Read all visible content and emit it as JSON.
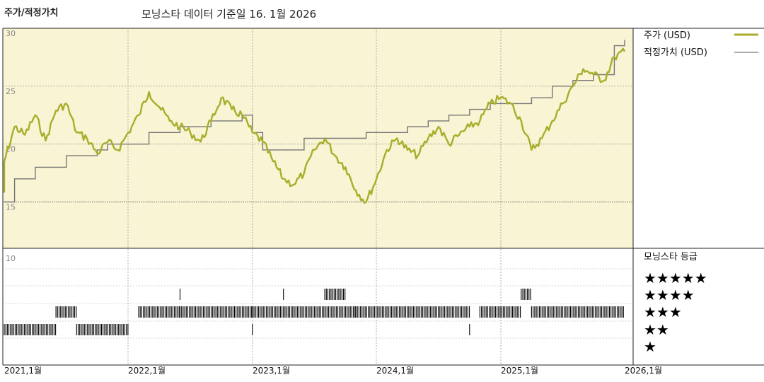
{
  "header": {
    "section_title": "주가/적정가치",
    "data_basis": "모닝스타 데이터 기준일 16. 1월 2026"
  },
  "legend": {
    "price_label": "주가 (USD)",
    "fair_value_label": "적정가치 (USD)",
    "rating_title": "모닝스타 등급",
    "rating_rows": [
      "★★★★★",
      "★★★★",
      "★★★",
      "★★",
      "★"
    ]
  },
  "colors": {
    "price_line": "#a8ad2a",
    "fair_value_line": "#777777",
    "upper_panel_bg": "#f8f4d4",
    "rating_bar": "#000000"
  },
  "chart_data": {
    "type": "line",
    "x_tick_labels": [
      "2021,1월",
      "2022,1월",
      "2023,1월",
      "2024,1월",
      "2025,1월",
      "2026,1월"
    ],
    "upper_panel": {
      "y_tick_labels": [
        "30",
        "25",
        "20",
        "15"
      ],
      "ylim": [
        11,
        30
      ],
      "x_range": [
        "2021-01",
        "2026-01"
      ],
      "series": [
        {
          "name": "주가 (USD)",
          "points": [
            [
              "2021-01",
              15.8
            ],
            [
              "2021-01",
              18.5
            ],
            [
              "2021-02",
              21.5
            ],
            [
              "2021-03",
              20.8
            ],
            [
              "2021-04",
              22.5
            ],
            [
              "2021-05",
              20.3
            ],
            [
              "2021-06",
              22.9
            ],
            [
              "2021-07",
              23.5
            ],
            [
              "2021-08",
              21.0
            ],
            [
              "2021-09",
              20.5
            ],
            [
              "2021-10",
              19.2
            ],
            [
              "2021-11",
              20.2
            ],
            [
              "2021-12",
              19.5
            ],
            [
              "2022-01",
              21.0
            ],
            [
              "2022-02",
              22.5
            ],
            [
              "2022-03",
              24.5
            ],
            [
              "2022-04",
              23.2
            ],
            [
              "2022-05",
              22.0
            ],
            [
              "2022-06",
              21.5
            ],
            [
              "2022-07",
              21.0
            ],
            [
              "2022-08",
              20.2
            ],
            [
              "2022-09",
              22.0
            ],
            [
              "2022-10",
              24.0
            ],
            [
              "2022-11",
              23.0
            ],
            [
              "2022-12",
              22.5
            ],
            [
              "2023-01",
              21.0
            ],
            [
              "2023-02",
              20.2
            ],
            [
              "2023-03",
              18.5
            ],
            [
              "2023-04",
              17.0
            ],
            [
              "2023-05",
              16.5
            ],
            [
              "2023-06",
              17.5
            ],
            [
              "2023-07",
              19.5
            ],
            [
              "2023-08",
              20.5
            ],
            [
              "2023-09",
              19.0
            ],
            [
              "2023-10",
              18.0
            ],
            [
              "2023-11",
              16.0
            ],
            [
              "2023-12",
              15.0
            ],
            [
              "2024-01",
              17.0
            ],
            [
              "2024-02",
              19.5
            ],
            [
              "2024-03",
              20.5
            ],
            [
              "2024-04",
              19.5
            ],
            [
              "2024-05",
              19.0
            ],
            [
              "2024-06",
              20.5
            ],
            [
              "2024-07",
              21.5
            ],
            [
              "2024-08",
              20.0
            ],
            [
              "2024-09",
              20.8
            ],
            [
              "2024-10",
              21.5
            ],
            [
              "2024-11",
              22.0
            ],
            [
              "2024-12",
              23.5
            ],
            [
              "2025-01",
              24.0
            ],
            [
              "2025-02",
              23.5
            ],
            [
              "2025-03",
              22.0
            ],
            [
              "2025-04",
              19.5
            ],
            [
              "2025-05",
              20.5
            ],
            [
              "2025-06",
              22.0
            ],
            [
              "2025-07",
              23.5
            ],
            [
              "2025-08",
              25.0
            ],
            [
              "2025-09",
              26.5
            ],
            [
              "2025-10",
              26.0
            ],
            [
              "2025-11",
              25.5
            ],
            [
              "2025-12",
              27.5
            ],
            [
              "2026-01",
              28.0
            ]
          ]
        },
        {
          "name": "적정가치 (USD)",
          "points": [
            [
              "2021-01",
              15.0
            ],
            [
              "2021-02",
              17.0
            ],
            [
              "2021-04",
              18.0
            ],
            [
              "2021-07",
              19.0
            ],
            [
              "2021-10",
              19.5
            ],
            [
              "2021-11",
              20.0
            ],
            [
              "2022-01",
              20.0
            ],
            [
              "2022-03",
              21.0
            ],
            [
              "2022-06",
              21.5
            ],
            [
              "2022-09",
              22.0
            ],
            [
              "2022-12",
              22.5
            ],
            [
              "2023-01",
              21.0
            ],
            [
              "2023-02",
              19.5
            ],
            [
              "2023-04",
              19.5
            ],
            [
              "2023-06",
              20.5
            ],
            [
              "2023-08",
              20.5
            ],
            [
              "2023-10",
              20.5
            ],
            [
              "2023-12",
              21.0
            ],
            [
              "2024-02",
              21.0
            ],
            [
              "2024-04",
              21.5
            ],
            [
              "2024-06",
              22.0
            ],
            [
              "2024-08",
              22.5
            ],
            [
              "2024-10",
              23.0
            ],
            [
              "2024-12",
              23.5
            ],
            [
              "2025-02",
              23.5
            ],
            [
              "2025-04",
              24.0
            ],
            [
              "2025-06",
              25.0
            ],
            [
              "2025-08",
              25.5
            ],
            [
              "2025-10",
              26.0
            ],
            [
              "2025-12",
              28.5
            ],
            [
              "2026-01",
              29.0
            ]
          ]
        }
      ]
    },
    "rating_panel": {
      "y_tick_label": "10",
      "levels": [
        5,
        4,
        3,
        2,
        1
      ],
      "segments": [
        {
          "rating": 2,
          "from": "2021-01",
          "to": "2021-06"
        },
        {
          "rating": 3,
          "from": "2021-06",
          "to": "2021-08"
        },
        {
          "rating": 2,
          "from": "2021-08",
          "to": "2022-01"
        },
        {
          "rating": 3,
          "from": "2022-02",
          "to": "2022-06"
        },
        {
          "rating": 4,
          "from": "2022-06",
          "to": "2022-06"
        },
        {
          "rating": 3,
          "from": "2022-06",
          "to": "2023-01"
        },
        {
          "rating": 2,
          "from": "2023-01",
          "to": "2023-01"
        },
        {
          "rating": 3,
          "from": "2023-01",
          "to": "2023-04"
        },
        {
          "rating": 4,
          "from": "2023-04",
          "to": "2023-04"
        },
        {
          "rating": 3,
          "from": "2023-04",
          "to": "2023-11"
        },
        {
          "rating": 4,
          "from": "2023-08",
          "to": "2023-10"
        },
        {
          "rating": 3,
          "from": "2023-11",
          "to": "2024-10"
        },
        {
          "rating": 2,
          "from": "2024-10",
          "to": "2024-10"
        },
        {
          "rating": 3,
          "from": "2024-11",
          "to": "2025-03"
        },
        {
          "rating": 4,
          "from": "2025-03",
          "to": "2025-04"
        },
        {
          "rating": 3,
          "from": "2025-04",
          "to": "2026-01"
        }
      ]
    }
  }
}
